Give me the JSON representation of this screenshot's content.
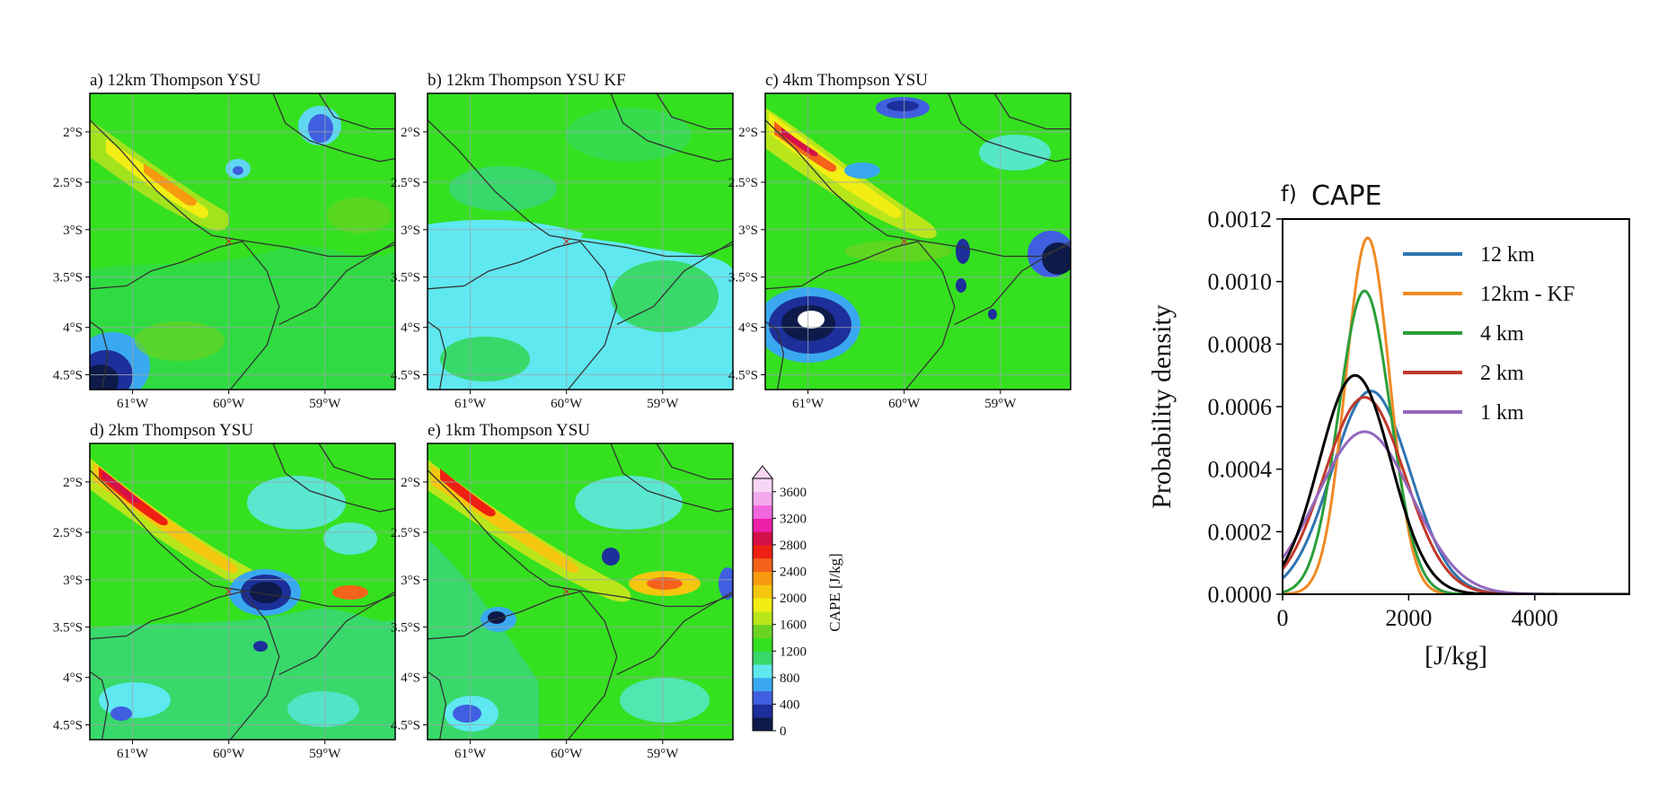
{
  "panels": [
    {
      "label": "a) 12km Thompson YSU"
    },
    {
      "label": "b) 12km Thompson YSU KF"
    },
    {
      "label": "c) 4km Thompson YSU"
    },
    {
      "label": "d) 2km Thompson YSU"
    },
    {
      "label": "e) 1km Thompson YSU"
    }
  ],
  "map_axes": {
    "lat_ticks": [
      "2°S",
      "2.5°S",
      "3°S",
      "3.5°S",
      "4°S",
      "4.5°S"
    ],
    "lon_ticks": [
      "61°W",
      "60°W",
      "59°W"
    ],
    "marker": "×"
  },
  "colorbar": {
    "label": "CAPE [J/kg]",
    "ticks": [
      "0",
      "400",
      "800",
      "1200",
      "1600",
      "2000",
      "2400",
      "2800",
      "3200",
      "3600"
    ],
    "colors": [
      "#0d1a4a",
      "#1d2f9a",
      "#3f5fe0",
      "#3aa8f0",
      "#5fe8f0",
      "#38d96a",
      "#34e01f",
      "#6ad321",
      "#b9e61b",
      "#f2ee13",
      "#f5c60e",
      "#f79a0f",
      "#f5621a",
      "#ee2013",
      "#d41049",
      "#ee1fa8",
      "#f067dd",
      "#f3a9ee",
      "#f8d6f5"
    ]
  },
  "chart_data": {
    "type": "line",
    "panel_label": "f)",
    "title": "CAPE",
    "xlabel": "[J/kg]",
    "ylabel": "Probability density",
    "xlim": [
      0,
      5500
    ],
    "ylim": [
      0,
      0.0012
    ],
    "x_ticks": [
      "0",
      "2000",
      "4000"
    ],
    "y_ticks": [
      "0.0000",
      "0.0002",
      "0.0004",
      "0.0006",
      "0.0008",
      "0.0010",
      "0.0012"
    ],
    "legend_position": "top-right",
    "series": [
      {
        "name": "12 km",
        "color": "#2f74b0",
        "peak_x": 1400,
        "peak_y": 0.00065,
        "sd": 620
      },
      {
        "name": "12km - KF",
        "color": "#f08a24",
        "peak_x": 1350,
        "peak_y": 0.00114,
        "sd": 350
      },
      {
        "name": "4 km",
        "color": "#2c9e3a",
        "peak_x": 1300,
        "peak_y": 0.00097,
        "sd": 410
      },
      {
        "name": "2 km",
        "color": "#c0392b",
        "peak_x": 1300,
        "peak_y": 0.00063,
        "sd": 640
      },
      {
        "name": "1 km",
        "color": "#9467bd",
        "peak_x": 1300,
        "peak_y": 0.00052,
        "sd": 750
      },
      {
        "color": "#000000",
        "peak_x": 1150,
        "peak_y": 0.0007,
        "sd": 570
      }
    ]
  }
}
